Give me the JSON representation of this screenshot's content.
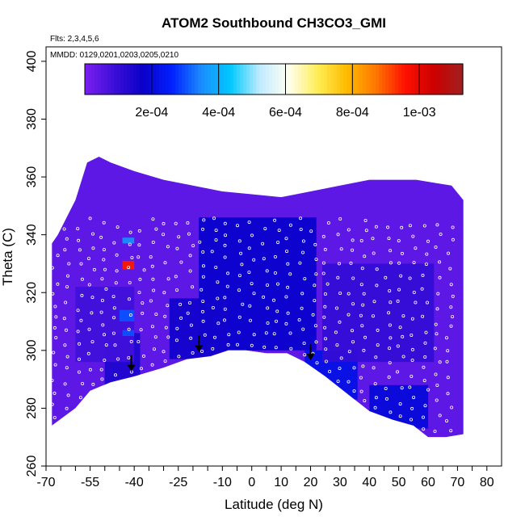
{
  "chart_data": {
    "type": "heatmap",
    "title": "ATOM2 Southbound CH3CO3_GMI",
    "flights_note": "Flts: 2,3,4,5,6",
    "dates_note": "MMDD: 0129,0201,0203,0205,0210",
    "xlabel": "Latitude (deg N)",
    "ylabel": "Theta (C)",
    "xlim": [
      -70,
      85
    ],
    "ylim": [
      260,
      405
    ],
    "x_ticks": [
      -70,
      -65,
      -60,
      -55,
      -50,
      -45,
      -40,
      -35,
      -30,
      -25,
      -20,
      -15,
      -10,
      -5,
      0,
      5,
      10,
      15,
      20,
      25,
      30,
      35,
      40,
      45,
      50,
      55,
      60,
      65,
      70,
      75,
      80
    ],
    "x_tick_labels": [
      "-70",
      "-55",
      "-40",
      "-25",
      "-10",
      "0",
      "10",
      "20",
      "30",
      "40",
      "50",
      "60",
      "70",
      "80"
    ],
    "x_tick_label_values": [
      -70,
      -55,
      -40,
      -25,
      -10,
      0,
      10,
      20,
      30,
      40,
      50,
      60,
      70,
      80
    ],
    "y_ticks": [
      260,
      280,
      300,
      320,
      340,
      360,
      380,
      400
    ],
    "y_tick_labels": [
      "260",
      "280",
      "300",
      "320",
      "340",
      "360",
      "380",
      "400"
    ],
    "colorbar": {
      "range": [
        0,
        0.00113
      ],
      "tick_values": [
        0.0002,
        0.0004,
        0.0006,
        0.0008,
        0.001
      ],
      "tick_labels": [
        "2e-04",
        "4e-04",
        "6e-04",
        "8e-04",
        "1e-03"
      ],
      "colors": [
        "#7a1ff0",
        "#3b0fd8",
        "#0a00c8",
        "#0020ff",
        "#1a8cff",
        "#00c8ff",
        "#bfeaff",
        "#fffff0",
        "#ffee55",
        "#ffbb00",
        "#ff7700",
        "#ff1100",
        "#cc0000",
        "#a02020"
      ]
    },
    "field": {
      "background_value": 4e-05,
      "domain_bottom_boundary": [
        [
          -68,
          274
        ],
        [
          -60,
          280
        ],
        [
          -55,
          286
        ],
        [
          -48,
          289
        ],
        [
          -40,
          291
        ],
        [
          -30,
          294
        ],
        [
          -22,
          297
        ],
        [
          -14,
          298
        ],
        [
          -8,
          300
        ],
        [
          -2,
          300
        ],
        [
          5,
          299
        ],
        [
          12,
          299
        ],
        [
          18,
          296
        ],
        [
          25,
          291
        ],
        [
          30,
          287
        ],
        [
          35,
          283
        ],
        [
          40,
          279
        ],
        [
          48,
          276
        ],
        [
          55,
          274
        ],
        [
          60,
          270
        ],
        [
          66,
          270
        ],
        [
          72,
          271
        ]
      ],
      "domain_top_boundary": [
        [
          -68,
          337
        ],
        [
          -66,
          340
        ],
        [
          -60,
          352
        ],
        [
          -56,
          365
        ],
        [
          -52,
          367
        ],
        [
          -48,
          365
        ],
        [
          -40,
          362
        ],
        [
          -30,
          359
        ],
        [
          -20,
          357
        ],
        [
          -10,
          355
        ],
        [
          0,
          354
        ],
        [
          10,
          353
        ],
        [
          20,
          355
        ],
        [
          30,
          357
        ],
        [
          40,
          359
        ],
        [
          50,
          359
        ],
        [
          56,
          359
        ],
        [
          62,
          358
        ],
        [
          68,
          357
        ],
        [
          72,
          352
        ],
        [
          72,
          272
        ]
      ],
      "regions": [
        {
          "x": [
            -18,
            22
          ],
          "y": [
            300,
            346
          ],
          "value": 0.00018
        },
        {
          "x": [
            -50,
            -38
          ],
          "y": [
            288,
            306
          ],
          "value": 0.00014
        },
        {
          "x": [
            -28,
            -8
          ],
          "y": [
            297,
            318
          ],
          "value": 0.00016
        },
        {
          "x": [
            18,
            36
          ],
          "y": [
            283,
            300
          ],
          "value": 0.00022
        },
        {
          "x": [
            40,
            60
          ],
          "y": [
            273,
            288
          ],
          "value": 0.0002
        },
        {
          "x": [
            -60,
            -40
          ],
          "y": [
            296,
            322
          ],
          "value": 8e-05
        },
        {
          "x": [
            24,
            62
          ],
          "y": [
            296,
            330
          ],
          "value": 0.0001
        },
        {
          "x": [
            -44,
            -40
          ],
          "y": [
            328,
            331
          ],
          "value": 0.00095
        },
        {
          "x": [
            -44,
            -40
          ],
          "y": [
            337,
            339
          ],
          "value": 0.00035
        },
        {
          "x": [
            -45,
            -40
          ],
          "y": [
            310,
            314
          ],
          "value": 0.0003
        },
        {
          "x": [
            -44,
            -40
          ],
          "y": [
            305,
            307
          ],
          "value": 0.0003
        }
      ]
    },
    "flight_track_note": "white circles mark aircraft sampling points",
    "arrows_latitude": [
      -41,
      -18,
      20
    ]
  }
}
